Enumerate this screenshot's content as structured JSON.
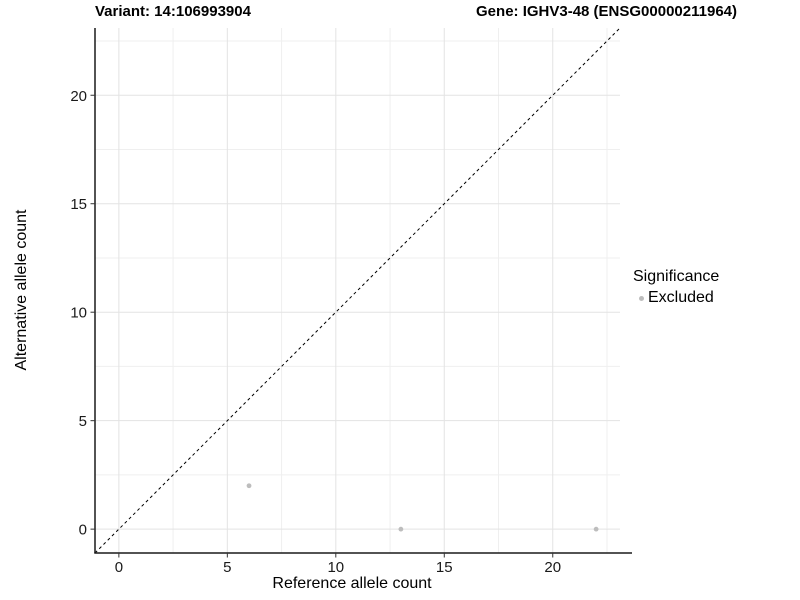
{
  "chart_data": {
    "type": "scatter",
    "title_left": "Variant: 14:106993904",
    "title_right": "Gene: IGHV3-48 (ENSG00000211964)",
    "xlabel": "Reference allele count",
    "ylabel": "Alternative allele count",
    "xlim": [
      -1.1,
      23.1
    ],
    "ylim": [
      -1.1,
      23.1
    ],
    "x_ticks": [
      0,
      5,
      10,
      15,
      20
    ],
    "y_ticks": [
      0,
      5,
      10,
      15,
      20
    ],
    "x_minor_ticks": [
      2.5,
      7.5,
      12.5,
      17.5,
      22.5
    ],
    "y_minor_ticks": [
      2.5,
      7.5,
      12.5,
      17.5,
      22.5
    ],
    "grid": true,
    "reference_line": {
      "type": "identity",
      "slope": 1,
      "intercept": 0,
      "style": "dashed",
      "color": "#000000"
    },
    "series": [
      {
        "name": "Excluded",
        "color": "#bdbdbd",
        "points": [
          [
            6,
            2
          ],
          [
            13,
            0
          ],
          [
            22,
            0
          ]
        ]
      }
    ],
    "legend": {
      "title": "Significance",
      "position": "right",
      "items": [
        {
          "label": "Excluded",
          "color": "#bdbdbd"
        }
      ]
    },
    "colors": {
      "grid_major": "#e3e3e3",
      "grid_minor": "#efefef",
      "axis_line": "#1a1a1a",
      "tick_label": "#1a1a1a",
      "background": "#ffffff"
    }
  }
}
